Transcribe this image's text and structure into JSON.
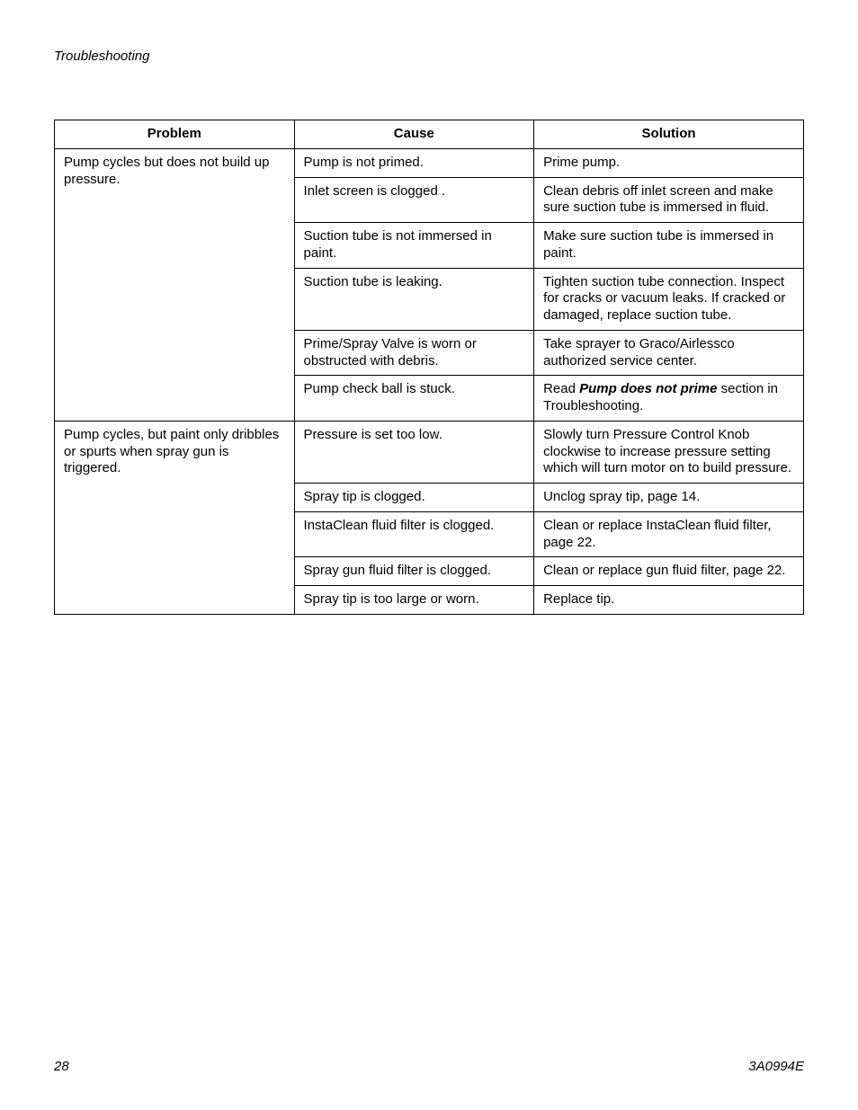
{
  "section_title": "Troubleshooting",
  "columns": [
    "Problem",
    "Cause",
    "Solution"
  ],
  "page_number": "28",
  "doc_id": "3A0994E",
  "groups": [
    {
      "problem": "Pump cycles but does not build up pressure.",
      "rows": [
        {
          "cause": "Pump is not primed.",
          "solution": "Prime pump."
        },
        {
          "cause": "Inlet screen is clogged .",
          "solution": "Clean debris off inlet screen and make sure suction tube is immersed in fluid."
        },
        {
          "cause": "Suction tube is not immersed in paint.",
          "solution": "Make sure suction tube is immersed in paint."
        },
        {
          "cause": "Suction tube is leaking.",
          "solution": "Tighten suction tube connection. Inspect for cracks or vacuum leaks. If cracked or damaged, replace suction tube."
        },
        {
          "cause": "Prime/Spray Valve is worn or obstructed with debris.",
          "solution": "Take sprayer to Graco/Airlessco authorized service center."
        },
        {
          "cause": "Pump check ball is stuck.",
          "solution_pre": "Read ",
          "solution_em": "Pump does not prime",
          "solution_post": " section in Troubleshooting."
        }
      ]
    },
    {
      "problem": "Pump cycles, but paint only dribbles or spurts when spray gun is triggered.",
      "rows": [
        {
          "cause": "Pressure is set too low.",
          "solution": "Slowly turn Pressure Control Knob clockwise to increase pressure setting which will turn motor on to build pressure."
        },
        {
          "cause": "Spray tip is clogged.",
          "solution": "Unclog spray tip, page 14."
        },
        {
          "cause": "InstaClean fluid filter is clogged.",
          "solution": "Clean or replace InstaClean fluid filter, page 22."
        },
        {
          "cause": "Spray gun fluid filter is clogged.",
          "solution": "Clean or replace gun fluid filter, page 22."
        },
        {
          "cause": "Spray tip is too large or worn.",
          "solution": "Replace tip."
        }
      ]
    }
  ]
}
